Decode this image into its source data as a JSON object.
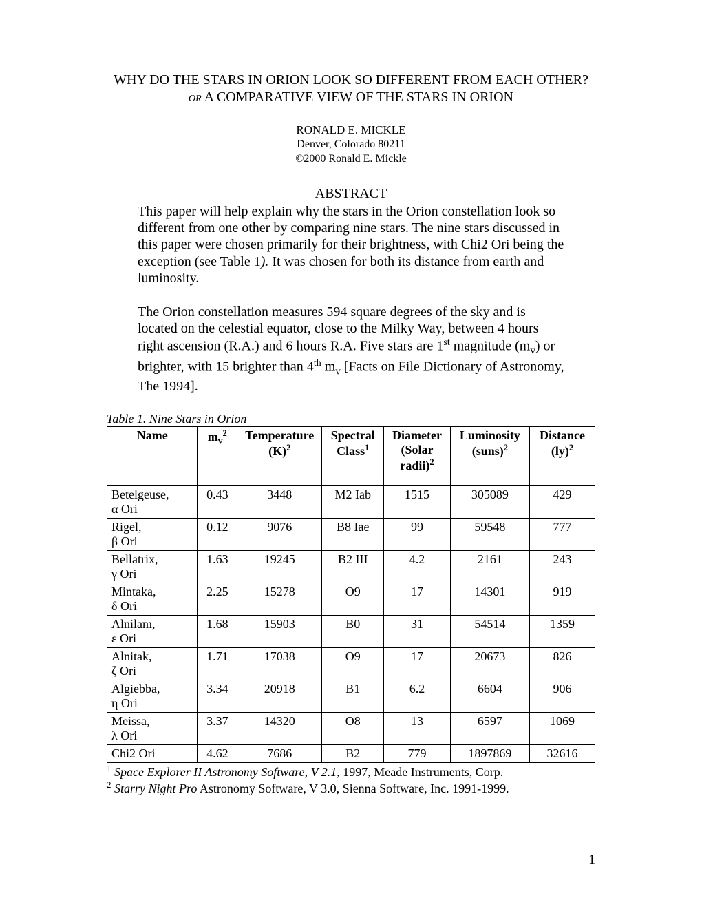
{
  "title": "WHY DO THE STARS IN ORION LOOK SO DIFFERENT FROM EACH OTHER?",
  "subtitle_or": "OR",
  "subtitle_rest": "  A COMPARATIVE VIEW OF THE STARS IN ORION",
  "author": {
    "name_caps": "RONALD E. MICKLE",
    "location": "Denver, Colorado 80211",
    "copyright": "©2000 Ronald E. Mickle"
  },
  "abstract_heading": "ABSTRACT",
  "abstract_p1_a": "This paper will help explain why the stars in the Orion constellation look so different from one other by comparing nine stars.  The nine stars discussed in this paper were chosen primarily for their brightness, with Chi2 Ori being the exception (see Table 1",
  "abstract_p1_b": ").",
  "abstract_p1_c": "  It was chosen for both its distance from earth and luminosity.",
  "abstract_p2_a": "The Orion constellation measures 594 square degrees of the sky and is located on the celestial equator, close to the Milky Way, between 4 hours right ascension (R.A.) and 6 hours R.A.   Five stars are 1",
  "abstract_p2_b": " magnitude (m",
  "abstract_p2_c": ") or brighter, with 15 brighter than 4",
  "abstract_p2_d": " m",
  "abstract_p2_e": " [Facts on File Dictionary of Astronomy, The 1994].",
  "sup_st": "st",
  "sup_th": "th",
  "sub_v": "v",
  "table_caption": "Table 1.  Nine Stars in Orion",
  "columns": {
    "name": "Name",
    "mv_a": "m",
    "mv_sub": "v",
    "mv_sup": "2",
    "temp_a": "Temperature (K)",
    "temp_sup": "2",
    "spec_a": "Spectral Class",
    "spec_sup": "1",
    "diam_a": "Diameter (Solar radii)",
    "diam_sup": "2",
    "lum_a": "Luminosity (suns)",
    "lum_sup": "2",
    "dist_a": "Distance (ly)",
    "dist_sup": "2"
  },
  "rows": [
    {
      "name": "Betelgeuse,",
      "greek": "α Ori",
      "mv": "0.43",
      "temp": "3448",
      "spec": "M2 Iab",
      "diam": "1515",
      "lum": "305089",
      "dist": "429"
    },
    {
      "name": "Rigel,",
      "greek": "β Ori",
      "mv": "0.12",
      "temp": "9076",
      "spec": "B8 Iae",
      "diam": "99",
      "lum": "59548",
      "dist": "777"
    },
    {
      "name": "Bellatrix,",
      "greek": "γ Ori",
      "mv": "1.63",
      "temp": "19245",
      "spec": "B2 III",
      "diam": "4.2",
      "lum": "2161",
      "dist": "243"
    },
    {
      "name": "Mintaka,",
      "greek": "δ Ori",
      "mv": "2.25",
      "temp": "15278",
      "spec": "O9",
      "diam": "17",
      "lum": "14301",
      "dist": "919"
    },
    {
      "name": "Alnilam,",
      "greek": "ε Ori",
      "mv": "1.68",
      "temp": "15903",
      "spec": "B0",
      "diam": "31",
      "lum": "54514",
      "dist": "1359"
    },
    {
      "name": "Alnitak,",
      "greek": "ζ Ori",
      "mv": "1.71",
      "temp": "17038",
      "spec": "O9",
      "diam": "17",
      "lum": "20673",
      "dist": "826"
    },
    {
      "name": "Algiebba,",
      "greek": "η Ori",
      "mv": "3.34",
      "temp": "20918",
      "spec": "B1",
      "diam": "6.2",
      "lum": "6604",
      "dist": "906"
    },
    {
      "name": "Meissa,",
      "greek": "λ Ori",
      "mv": "3.37",
      "temp": "14320",
      "spec": "O8",
      "diam": "13",
      "lum": "6597",
      "dist": "1069"
    },
    {
      "name": "Chi2 Ori",
      "greek": "",
      "mv": "4.62",
      "temp": "7686",
      "spec": "B2",
      "diam": "779",
      "lum": "1897869",
      "dist": "32616"
    }
  ],
  "footnote1_sup": "1",
  "footnote1_italic": "Space Explorer II Astronomy Software, V 2.1",
  "footnote1_rest": ", 1997, Meade Instruments, Corp.",
  "footnote2_sup": "2",
  "footnote2_italic": "Starry Night Pro",
  "footnote2_rest": " Astronomy Software, V 3.0, Sienna Software, Inc. 1991-1999.",
  "page_number": "1"
}
